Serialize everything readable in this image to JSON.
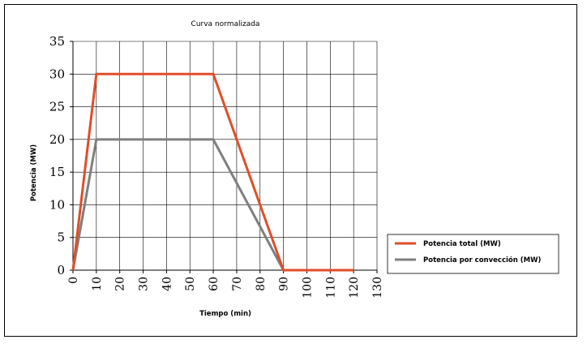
{
  "chart_data": {
    "type": "line",
    "title": "Curva normalizada",
    "xlabel": "Tiempo (min)",
    "ylabel": "Potencia (MW)",
    "xlim": [
      0,
      130
    ],
    "ylim": [
      0,
      35
    ],
    "xticks": [
      0,
      10,
      20,
      30,
      40,
      50,
      60,
      70,
      80,
      90,
      100,
      110,
      120,
      130
    ],
    "yticks": [
      0,
      5,
      10,
      15,
      20,
      25,
      30,
      35
    ],
    "grid": true,
    "legend_position": "right",
    "series": [
      {
        "name": "Potencia total (MW)",
        "color": "#e04e28",
        "x": [
          0,
          10,
          60,
          90,
          120
        ],
        "y": [
          0,
          30,
          30,
          0,
          0
        ]
      },
      {
        "name": "Potencia por convección (MW)",
        "color": "#7f7f7f",
        "x": [
          0,
          10,
          60,
          90,
          120
        ],
        "y": [
          0,
          20,
          20,
          0,
          0
        ]
      }
    ]
  }
}
